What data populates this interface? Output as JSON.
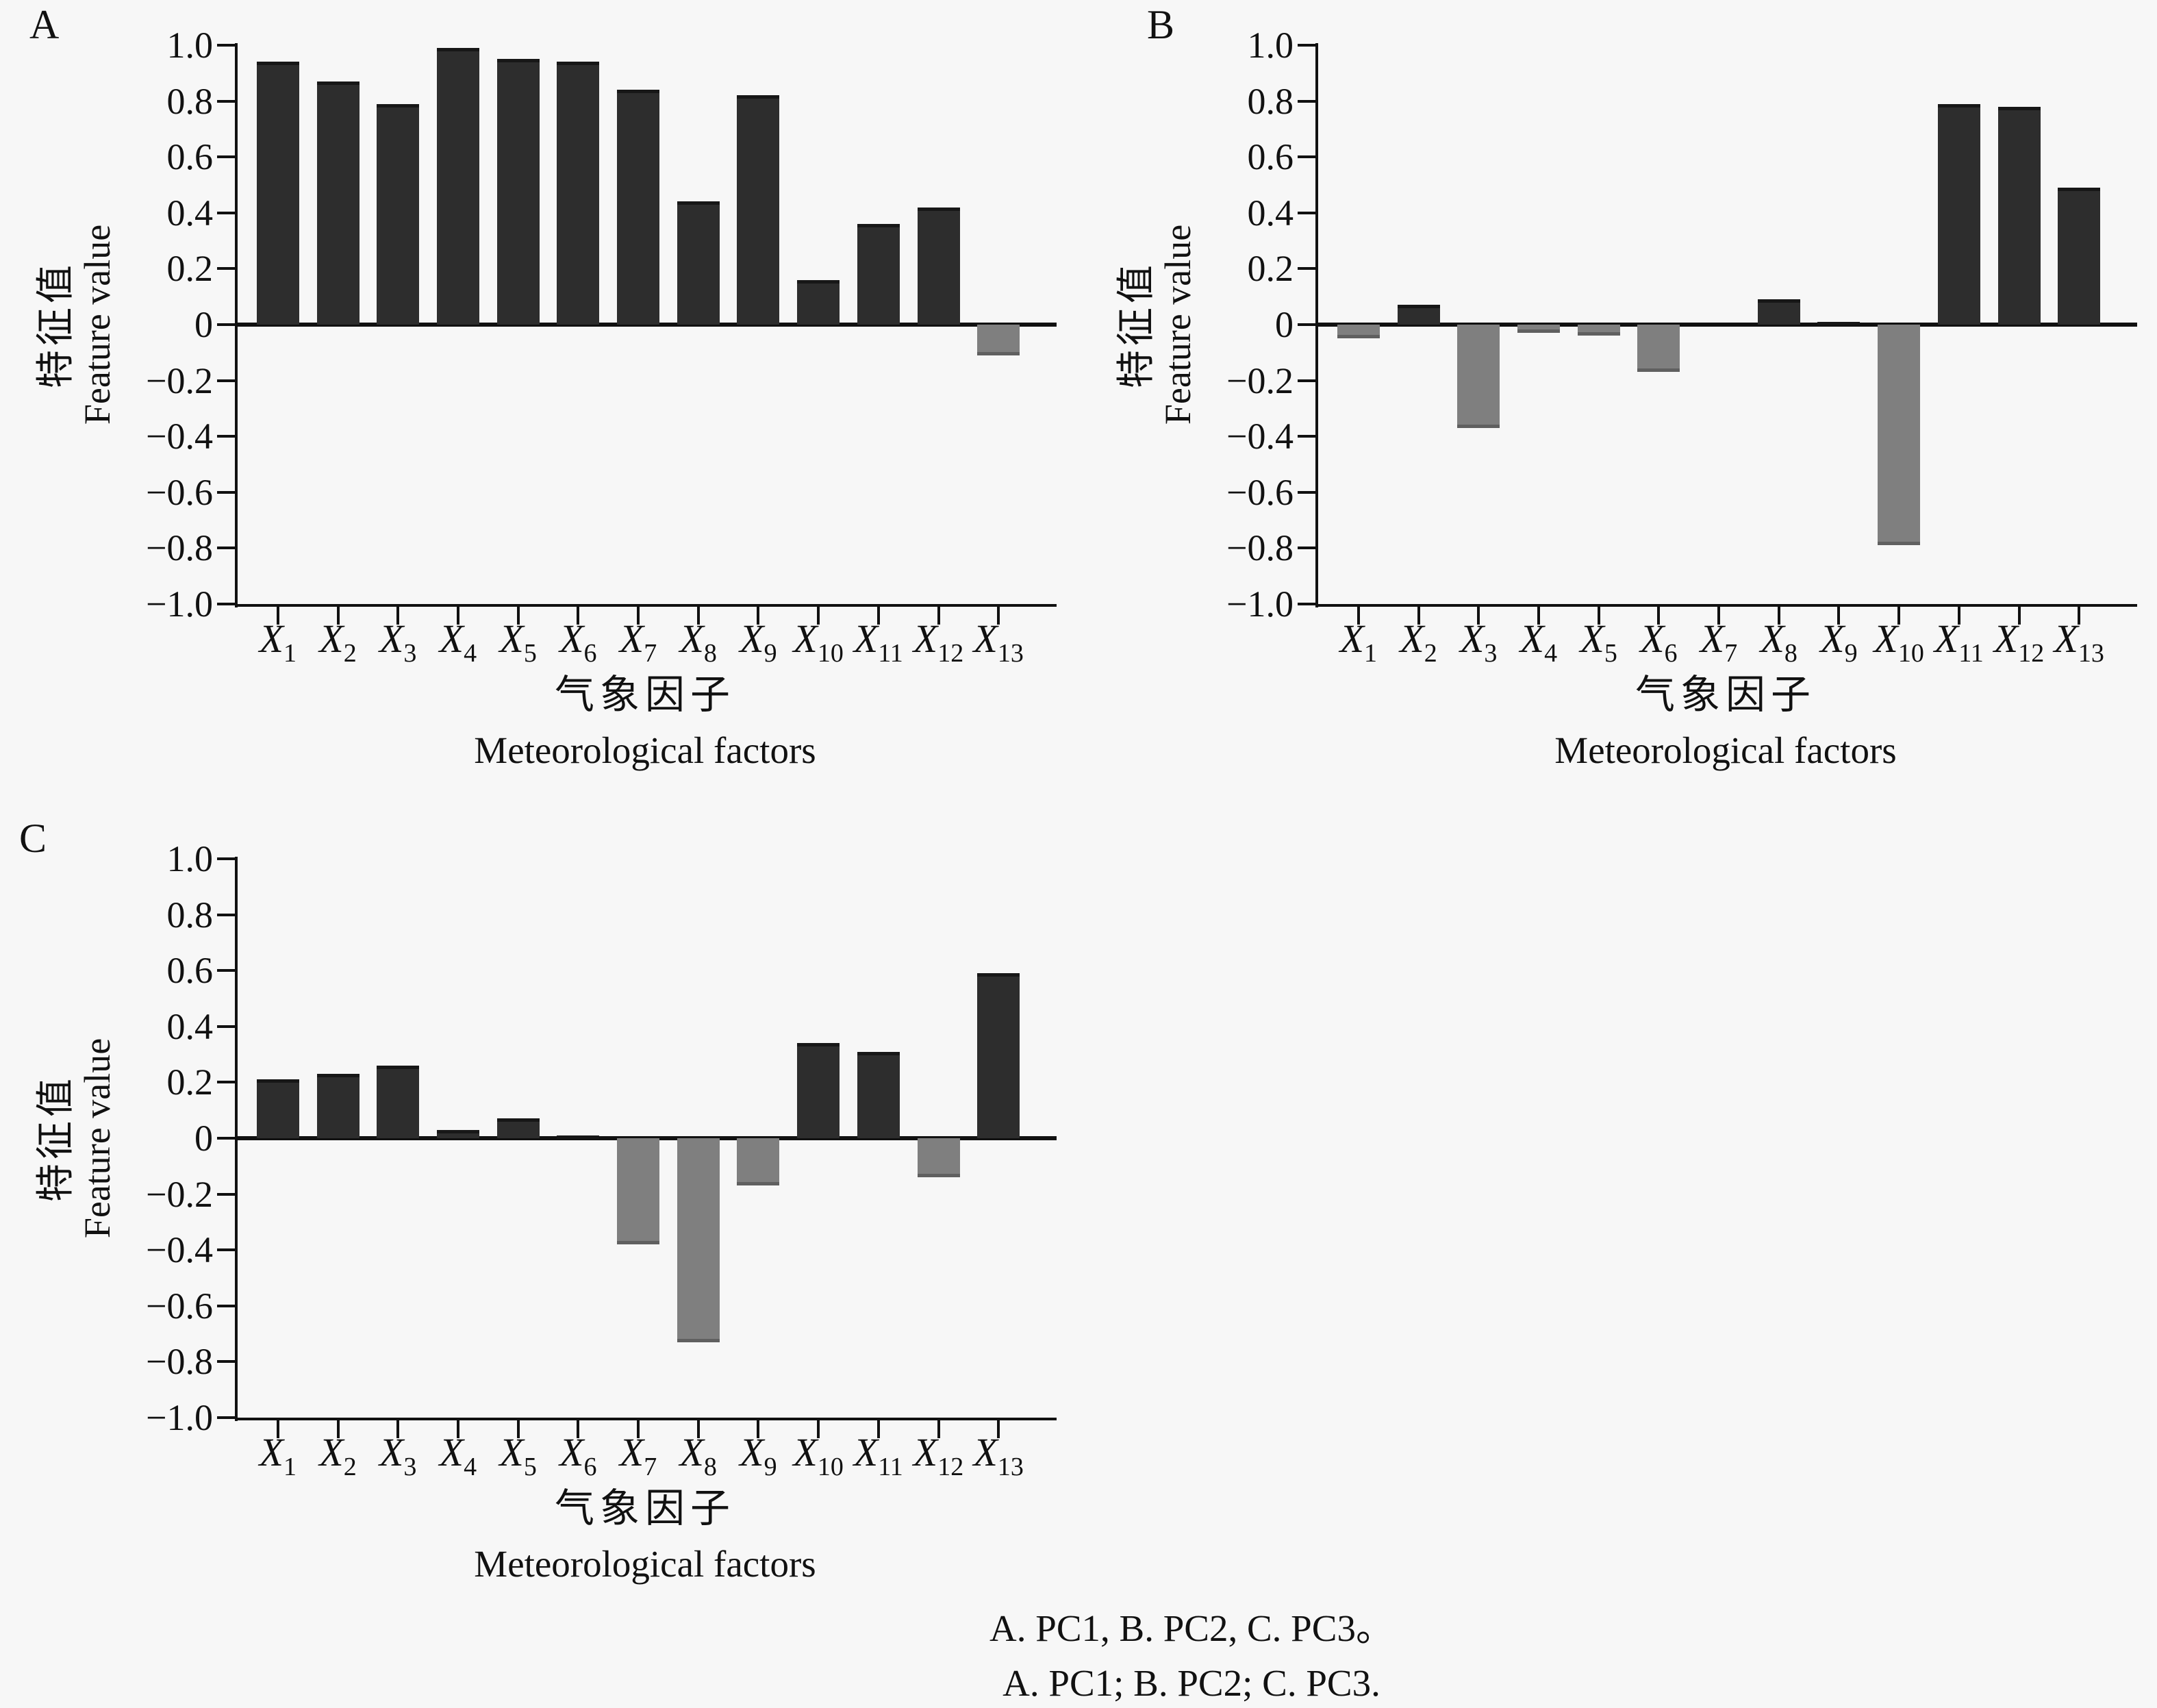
{
  "figure": {
    "panels": [
      {
        "letter": "A",
        "component": "PC1"
      },
      {
        "letter": "B",
        "component": "PC2"
      },
      {
        "letter": "C",
        "component": "PC3"
      }
    ],
    "y_axis_title_zh": "特征值",
    "y_axis_title_en": "Feature value",
    "x_axis_title_zh": "气象因子",
    "x_axis_title_en": "Meteorological factors",
    "caption_line1": "A. PC1, B. PC2, C. PC3。",
    "caption_line2": "A. PC1; B. PC2; C. PC3."
  },
  "colors": {
    "background": "#f7f7f7",
    "axis": "#111111",
    "positive_bar": "#2d2d2d",
    "positive_bar_cap": "#171717",
    "negative_bar": "#7f7f7f",
    "negative_bar_cap": "#606060"
  },
  "chart_data": [
    {
      "type": "bar",
      "panel": "A",
      "series_name": "PC1",
      "categories": [
        "X1",
        "X2",
        "X3",
        "X4",
        "X5",
        "X6",
        "X7",
        "X8",
        "X9",
        "X10",
        "X11",
        "X12",
        "X13"
      ],
      "values": [
        0.94,
        0.87,
        0.79,
        0.99,
        0.95,
        0.94,
        0.84,
        0.44,
        0.82,
        0.16,
        0.36,
        0.42,
        -0.11
      ],
      "xlabel_zh": "气象因子",
      "xlabel_en": "Meteorological factors",
      "ylabel_zh": "特征值",
      "ylabel_en": "Feature value",
      "ylim": [
        -1.0,
        1.0
      ],
      "ytick_step": 0.2,
      "ytick_labels": [
        "1.0",
        "0.8",
        "0.6",
        "0.4",
        "0.2",
        "0",
        "−0.2",
        "−0.4",
        "−0.6",
        "−0.8",
        "−1.0"
      ],
      "grid": false,
      "legend": "none"
    },
    {
      "type": "bar",
      "panel": "B",
      "series_name": "PC2",
      "categories": [
        "X1",
        "X2",
        "X3",
        "X4",
        "X5",
        "X6",
        "X7",
        "X8",
        "X9",
        "X10",
        "X11",
        "X12",
        "X13"
      ],
      "values": [
        -0.05,
        0.07,
        -0.37,
        -0.03,
        -0.04,
        -0.17,
        0.0,
        0.09,
        0.01,
        -0.79,
        0.79,
        0.78,
        0.49
      ],
      "xlabel_zh": "气象因子",
      "xlabel_en": "Meteorological factors",
      "ylabel_zh": "特征值",
      "ylabel_en": "Feature value",
      "ylim": [
        -1.0,
        1.0
      ],
      "ytick_step": 0.2,
      "ytick_labels": [
        "1.0",
        "0.8",
        "0.6",
        "0.4",
        "0.2",
        "0",
        "−0.2",
        "−0.4",
        "−0.6",
        "−0.8",
        "−1.0"
      ],
      "grid": false,
      "legend": "none"
    },
    {
      "type": "bar",
      "panel": "C",
      "series_name": "PC3",
      "categories": [
        "X1",
        "X2",
        "X3",
        "X4",
        "X5",
        "X6",
        "X7",
        "X8",
        "X9",
        "X10",
        "X11",
        "X12",
        "X13"
      ],
      "values": [
        0.21,
        0.23,
        0.26,
        0.03,
        0.07,
        0.01,
        -0.38,
        -0.73,
        -0.17,
        0.34,
        0.31,
        -0.14,
        0.59
      ],
      "xlabel_zh": "气象因子",
      "xlabel_en": "Meteorological factors",
      "ylabel_zh": "特征值",
      "ylabel_en": "Feature value",
      "ylim": [
        -1.0,
        1.0
      ],
      "ytick_step": 0.2,
      "ytick_labels": [
        "1.0",
        "0.8",
        "0.6",
        "0.4",
        "0.2",
        "0",
        "−0.2",
        "−0.4",
        "−0.6",
        "−0.8",
        "−1.0"
      ],
      "grid": false,
      "legend": "none"
    }
  ]
}
